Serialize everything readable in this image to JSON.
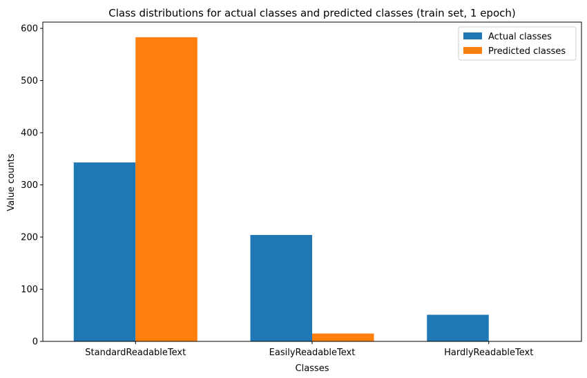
{
  "chart_data": {
    "type": "bar",
    "title": "Class distributions for actual classes and predicted classes (train set, 1 epoch)",
    "xlabel": "Classes",
    "ylabel": "Value counts",
    "categories": [
      "StandardReadableText",
      "EasilyReadableText",
      "HardlyReadableText"
    ],
    "series": [
      {
        "name": "Actual classes",
        "values": [
          343,
          204,
          51
        ],
        "color": "#1f77b4"
      },
      {
        "name": "Predicted classes",
        "values": [
          583,
          15,
          0
        ],
        "color": "#ff7f0e"
      }
    ],
    "ylim": [
      0,
      612
    ],
    "yticks": [
      0,
      100,
      200,
      300,
      400,
      500,
      600
    ],
    "grid": false,
    "legend_position": "top-right"
  }
}
